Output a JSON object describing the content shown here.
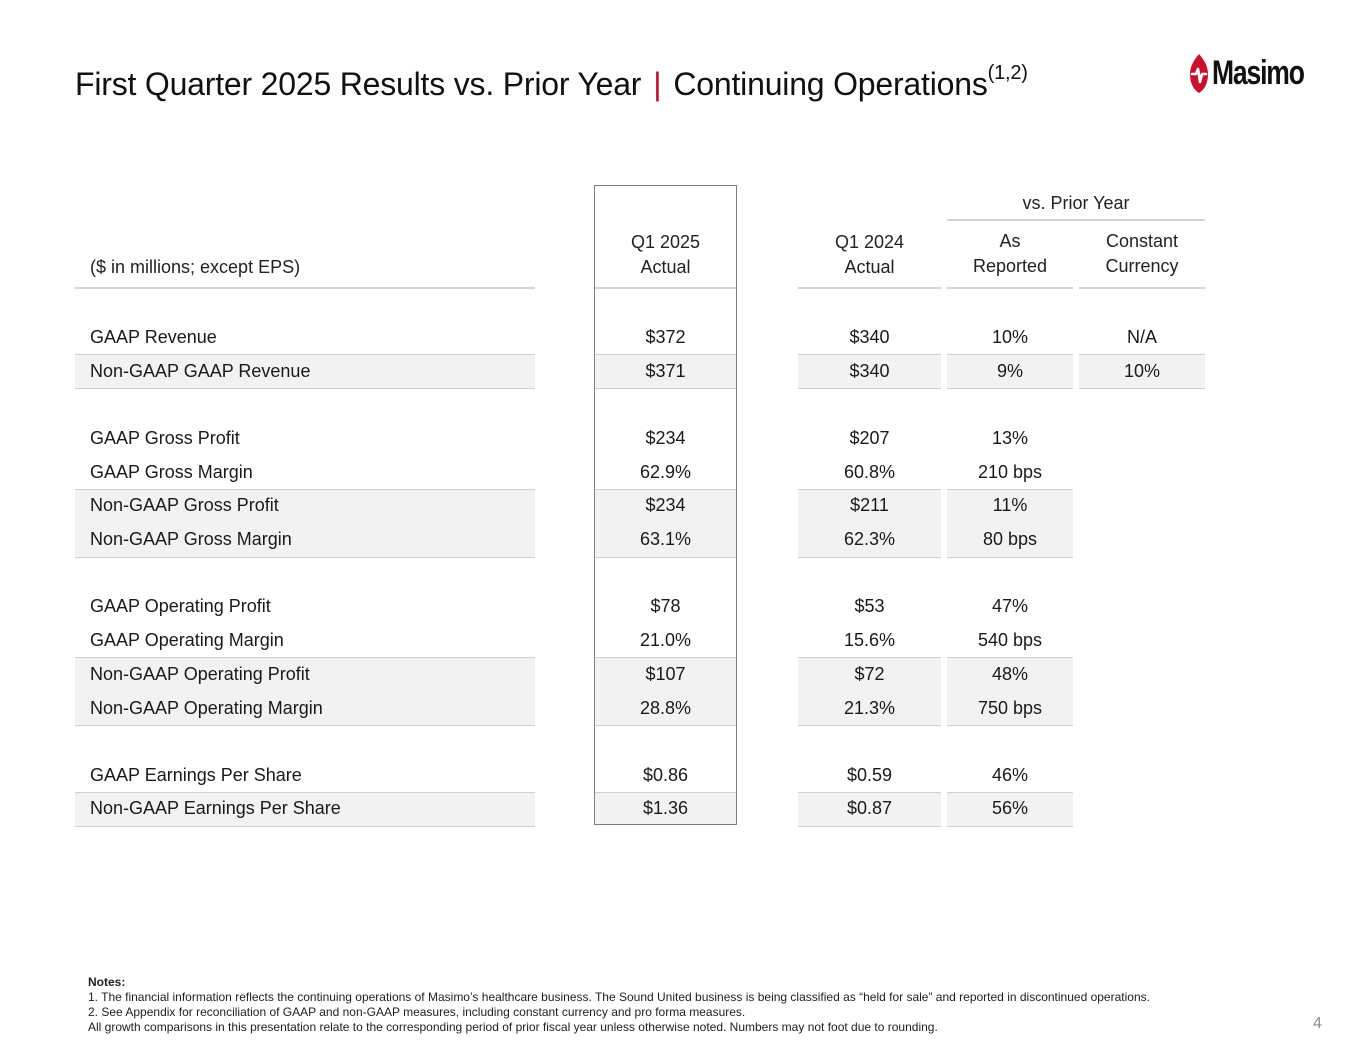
{
  "header": {
    "title_main": "First Quarter 2025 Results vs. Prior Year",
    "title_sep": "|",
    "title_sub": "Continuing Operations",
    "title_sup": "(1,2)",
    "logo_text": "Masimo"
  },
  "table": {
    "units_label": "($ in millions; except EPS)",
    "col1": [
      "Q1 2025",
      "Actual"
    ],
    "col2": [
      "Q1 2024",
      "Actual"
    ],
    "group_label": "vs. Prior Year",
    "col3": [
      "As",
      "Reported"
    ],
    "col4": [
      "Constant",
      "Currency"
    ],
    "rows": [
      {
        "label": "GAAP Revenue",
        "q1_2025": "$372",
        "q1_2024": "$340",
        "as_reported": "10%",
        "constant_currency": "N/A"
      },
      {
        "label": "Non-GAAP GAAP Revenue",
        "q1_2025": "$371",
        "q1_2024": "$340",
        "as_reported": "9%",
        "constant_currency": "10%"
      },
      {
        "label": "GAAP Gross Profit",
        "q1_2025": "$234",
        "q1_2024": "$207",
        "as_reported": "13%",
        "constant_currency": ""
      },
      {
        "label": "GAAP Gross Margin",
        "q1_2025": "62.9%",
        "q1_2024": "60.8%",
        "as_reported": "210 bps",
        "constant_currency": ""
      },
      {
        "label": "Non-GAAP Gross Profit",
        "q1_2025": "$234",
        "q1_2024": "$211",
        "as_reported": "11%",
        "constant_currency": ""
      },
      {
        "label": "Non-GAAP Gross Margin",
        "q1_2025": "63.1%",
        "q1_2024": "62.3%",
        "as_reported": "80 bps",
        "constant_currency": ""
      },
      {
        "label": "GAAP Operating Profit",
        "q1_2025": "$78",
        "q1_2024": "$53",
        "as_reported": "47%",
        "constant_currency": ""
      },
      {
        "label": "GAAP Operating Margin",
        "q1_2025": "21.0%",
        "q1_2024": "15.6%",
        "as_reported": "540 bps",
        "constant_currency": ""
      },
      {
        "label": "Non-GAAP Operating Profit",
        "q1_2025": "$107",
        "q1_2024": "$72",
        "as_reported": "48%",
        "constant_currency": ""
      },
      {
        "label": "Non-GAAP Operating Margin",
        "q1_2025": "28.8%",
        "q1_2024": "21.3%",
        "as_reported": "750 bps",
        "constant_currency": ""
      },
      {
        "label": "GAAP Earnings Per Share",
        "q1_2025": "$0.86",
        "q1_2024": "$0.59",
        "as_reported": "46%",
        "constant_currency": ""
      },
      {
        "label": "Non-GAAP Earnings Per Share",
        "q1_2025": "$1.36",
        "q1_2024": "$0.87",
        "as_reported": "56%",
        "constant_currency": ""
      }
    ]
  },
  "notes": {
    "heading": "Notes:",
    "lines": [
      "1. The financial information reflects the continuing operations of Masimo’s healthcare business.  The Sound United business is being classified as “held for sale” and reported in discontinued operations.",
      "2. See Appendix for reconciliation of GAAP and non-GAAP measures, including constant currency and pro forma measures.",
      "All growth comparisons in this presentation relate to the corresponding period of prior fiscal year unless otherwise noted.  Numbers may not foot due to rounding."
    ]
  },
  "page_number": "4",
  "colors": {
    "accent": "#c8102e",
    "shade": "#f2f2f2",
    "rule": "#d4d4d4"
  }
}
